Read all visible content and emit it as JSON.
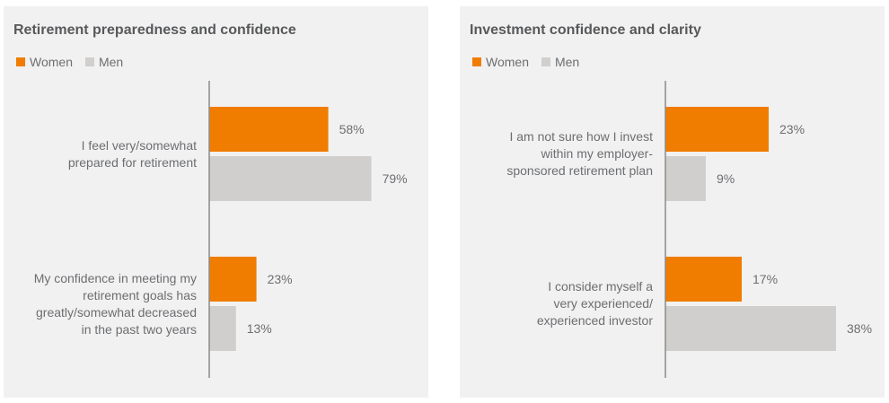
{
  "colors": {
    "women": "#f07d00",
    "men": "#d0cfcd",
    "axis": "#8a8a8a",
    "text": "#6d6e71"
  },
  "chart_data": [
    {
      "type": "bar",
      "orientation": "horizontal",
      "title": "Retirement preparedness and confidence",
      "legend": [
        "Women",
        "Men"
      ],
      "legend_placement": "top-left",
      "categories": [
        "I feel very/somewhat prepared for retirement",
        "My confidence in meeting my retirement goals has greatly/somewhat decreased in the past two years"
      ],
      "category_lines": [
        [
          "I feel very/somewhat",
          "prepared for retirement"
        ],
        [
          "My confidence in meeting my",
          "retirement goals has",
          "greatly/somewhat decreased",
          "in the past two years"
        ]
      ],
      "series": [
        {
          "name": "Women",
          "values": [
            58,
            23
          ],
          "labels": [
            "58%",
            "23%"
          ]
        },
        {
          "name": "Men",
          "values": [
            79,
            13
          ],
          "labels": [
            "79%",
            "13%"
          ]
        }
      ],
      "xlim": [
        0,
        105
      ],
      "grid": false
    },
    {
      "type": "bar",
      "orientation": "horizontal",
      "title": "Investment confidence and clarity",
      "legend": [
        "Women",
        "Men"
      ],
      "legend_placement": "top-left",
      "categories": [
        "I am not sure how I invest within my employer-sponsored retirement plan",
        "I consider myself a very experienced/experienced investor"
      ],
      "category_lines": [
        [
          "I am not sure how I invest",
          "within my employer-",
          "sponsored retirement plan"
        ],
        [
          "I consider myself a",
          "very experienced/",
          "experienced investor"
        ]
      ],
      "series": [
        {
          "name": "Women",
          "values": [
            23,
            17
          ],
          "labels": [
            "23%",
            "17%"
          ]
        },
        {
          "name": "Men",
          "values": [
            9,
            38
          ],
          "labels": [
            "9%",
            "38%"
          ]
        }
      ],
      "xlim": [
        0,
        48
      ],
      "grid": false
    }
  ]
}
